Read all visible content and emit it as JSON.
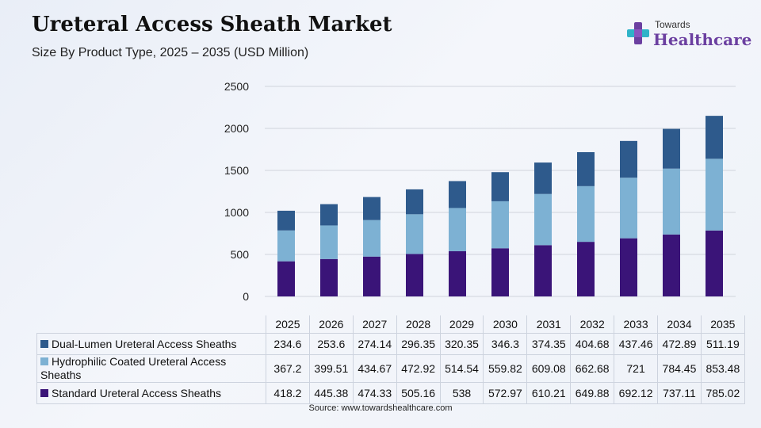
{
  "header": {
    "title": "Ureteral Access Sheath Market",
    "subtitle": "Size By Product Type, 2025 – 2035 (USD Million)"
  },
  "logo": {
    "line1": "Towards",
    "line2": "Healthcare"
  },
  "source": "Source: www.towardshealthcare.com",
  "colors": {
    "dual_lumen": "#2e5a8c",
    "hydrophilic": "#7db1d3",
    "standard": "#3a1478",
    "grid": "#d0d4dc",
    "logo_accent": "#6b3fa0"
  },
  "chart_data": {
    "type": "bar",
    "stacked": true,
    "title": "Ureteral Access Sheath Market",
    "subtitle": "Size By Product Type, 2025 – 2035 (USD Million)",
    "xlabel": "",
    "ylabel": "",
    "ylim": [
      0,
      2500
    ],
    "yticks": [
      0,
      500,
      1000,
      1500,
      2000,
      2500
    ],
    "grid": true,
    "legend": "table-below",
    "categories": [
      "2025",
      "2026",
      "2027",
      "2028",
      "2029",
      "2030",
      "2031",
      "2032",
      "2033",
      "2034",
      "2035"
    ],
    "series": [
      {
        "name": "Dual-Lumen Ureteral Access Sheaths",
        "values": [
          234.6,
          253.6,
          274.14,
          296.35,
          320.35,
          346.3,
          374.35,
          404.68,
          437.46,
          472.89,
          511.19
        ],
        "display": [
          "234.6",
          "253.6",
          "274.14",
          "296.35",
          "320.35",
          "346.3",
          "374.35",
          "404.68",
          "437.46",
          "472.89",
          "511.19"
        ]
      },
      {
        "name": "Hydrophilic Coated Ureteral Access Sheaths",
        "values": [
          367.2,
          399.51,
          434.67,
          472.92,
          514.54,
          559.82,
          609.08,
          662.68,
          721,
          784.45,
          853.48
        ],
        "display": [
          "367.2",
          "399.51",
          "434.67",
          "472.92",
          "514.54",
          "559.82",
          "609.08",
          "662.68",
          "721",
          "784.45",
          "853.48"
        ]
      },
      {
        "name": "Standard Ureteral Access Sheaths",
        "values": [
          418.2,
          445.38,
          474.33,
          505.16,
          538,
          572.97,
          610.21,
          649.88,
          692.12,
          737.11,
          785.02
        ],
        "display": [
          "418.2",
          "445.38",
          "474.33",
          "505.16",
          "538",
          "572.97",
          "610.21",
          "649.88",
          "692.12",
          "737.11",
          "785.02"
        ]
      }
    ]
  }
}
